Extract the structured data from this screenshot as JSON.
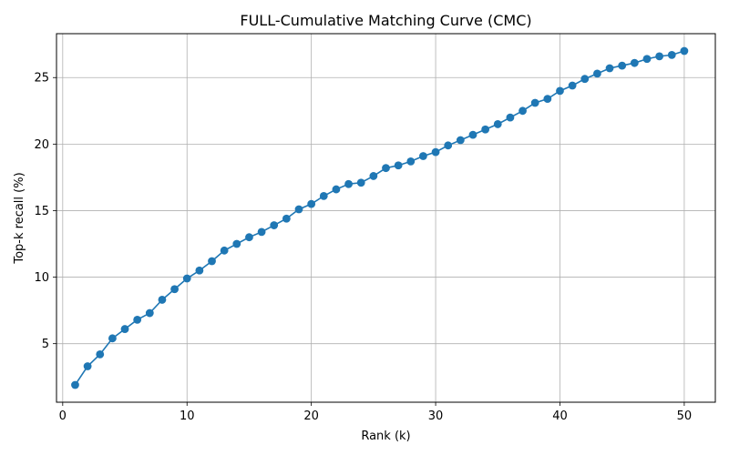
{
  "chart_data": {
    "type": "line",
    "title": "FULL-Cumulative Matching Curve (CMC)",
    "xlabel": "Rank (k)",
    "ylabel": "Top-k recall (%)",
    "xlim": [
      -0.5,
      52.5
    ],
    "ylim": [
      0.6,
      28.3
    ],
    "x_ticks": [
      0,
      10,
      20,
      30,
      40,
      50
    ],
    "y_ticks": [
      5,
      10,
      15,
      20,
      25
    ],
    "grid": true,
    "legend": "none",
    "series": [
      {
        "color": "#1f77b4",
        "marker": "circle",
        "x": [
          1,
          2,
          3,
          4,
          5,
          6,
          7,
          8,
          9,
          10,
          11,
          12,
          13,
          14,
          15,
          16,
          17,
          18,
          19,
          20,
          21,
          22,
          23,
          24,
          25,
          26,
          27,
          28,
          29,
          30,
          31,
          32,
          33,
          34,
          35,
          36,
          37,
          38,
          39,
          40,
          41,
          42,
          43,
          44,
          45,
          46,
          47,
          48,
          49,
          50
        ],
        "values": [
          1.9,
          3.3,
          4.2,
          5.4,
          6.1,
          6.8,
          7.3,
          8.3,
          9.1,
          9.9,
          10.5,
          11.2,
          12.0,
          12.5,
          13.0,
          13.4,
          13.9,
          14.4,
          15.1,
          15.5,
          16.1,
          16.6,
          17.0,
          17.1,
          17.6,
          18.2,
          18.4,
          18.7,
          19.1,
          19.4,
          19.9,
          20.3,
          20.7,
          21.1,
          21.5,
          22.0,
          22.5,
          23.1,
          23.4,
          24.0,
          24.4,
          24.9,
          25.3,
          25.7,
          25.9,
          26.1,
          26.4,
          26.6,
          26.7,
          27.0
        ]
      }
    ]
  }
}
